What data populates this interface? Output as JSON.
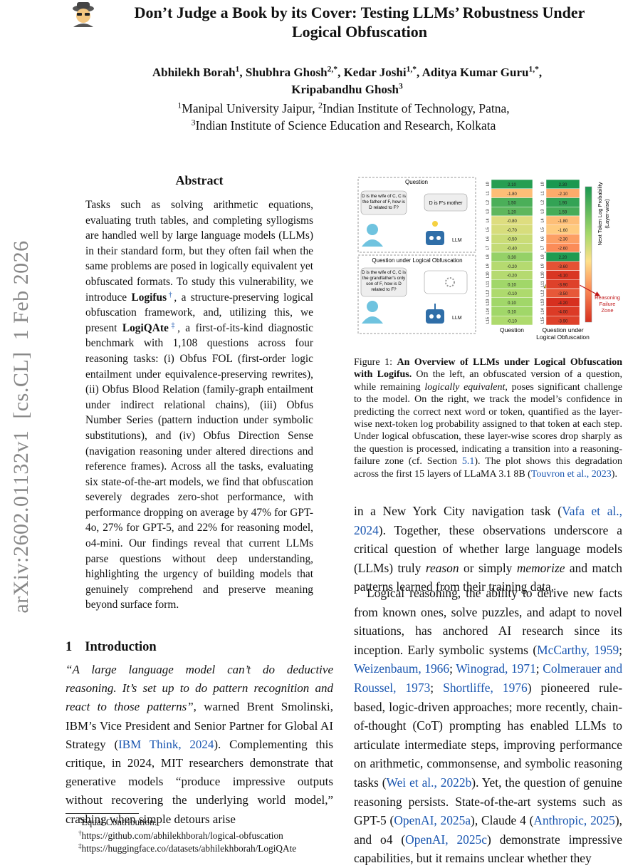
{
  "sidebar": "arXiv:2602.01132v1  [cs.CL]  1 Feb 2026",
  "header": {
    "title_lines": [
      "Don’t Judge a Book by its Cover: Testing LLMs’ Robustness Under",
      "Logical Obfuscation"
    ],
    "author_lines": [
      [
        {
          "text": "Abhilekh Borah"
        },
        {
          "text": "1",
          "style": "sup"
        },
        ", ",
        {
          "text": "Shubhra Ghosh"
        },
        {
          "text": "2,*",
          "style": "sup"
        },
        ", ",
        {
          "text": "Kedar Joshi"
        },
        {
          "text": "1,*",
          "style": "sup"
        },
        ", ",
        {
          "text": "Aditya Kumar Guru"
        },
        {
          "text": "1,*",
          "style": "sup"
        },
        ","
      ],
      [
        {
          "text": "Kripabandhu Ghosh"
        },
        {
          "text": "3",
          "style": "sup"
        }
      ]
    ],
    "affiliation_lines": [
      [
        {
          "text": "1",
          "style": "sup"
        },
        "Manipal University Jaipur, ",
        {
          "text": "2",
          "style": "sup"
        },
        "Indian Institute of Technology, Patna,"
      ],
      [
        {
          "text": "3",
          "style": "sup"
        },
        "Indian Institute of Science Education and Research, Kolkata"
      ]
    ]
  },
  "abstract": {
    "heading": "Abstract",
    "body": [
      "Tasks such as solving arithmetic equations, evaluating truth tables, and completing syllogisms are handled well by large language models (LLMs) in their standard form, but they often fail when the same problems are posed in logically equivalent yet obfuscated formats. To study this vulnerability, we introduce ",
      {
        "text": "Logifus",
        "style": "b"
      },
      {
        "text": "†",
        "style": "linksup"
      },
      ", a structure-preserving logical obfuscation framework, and, utilizing this, we present ",
      {
        "text": "LogiQAte",
        "style": "b"
      },
      {
        "text": "‡",
        "style": "linksup"
      },
      ", a first-of-its-kind diagnostic benchmark with 1,108 questions across four reasoning tasks: (i) Obfus FOL (first-order logic entailment under equivalence-preserving rewrites), (ii) Obfus Blood Relation (family-graph entailment under indirect relational chains), (iii) Obfus Number Series (pattern induction under symbolic substitutions), and (iv) Obfus Direction Sense (navigation reasoning under altered directions and reference frames). Across all the tasks, evaluating six state-of-the-art models, we find that obfuscation severely degrades zero-shot performance, with performance dropping on average by 47% for GPT-4o, 27% for GPT-5, and 22% for reasoning model, o4-mini. Our findings reveal that current LLMs parse questions without deep understanding, highlighting the urgency of building models that genuinely comprehend and preserve meaning beyond surface form."
    ]
  },
  "section": {
    "number": "1",
    "title": "Introduction"
  },
  "intro_left": [
    {
      "text": "“A large language model can’t do deductive reasoning. It’s set up to do pattern recognition and react to those patterns”",
      "style": "i"
    },
    ", warned Brent Smolinski, IBM’s Vice President and Senior Partner for Global AI Strategy (",
    {
      "text": "IBM Think, 2024",
      "style": "link"
    },
    "). Complementing this critique, in 2024, MIT researchers demonstrate that generative models “produce impressive outputs without recovering the underlying world model,” crashing when simple detours arise"
  ],
  "footnotes": [
    [
      {
        "text": "*",
        "style": "sup"
      },
      "Equal Contribution."
    ],
    [
      {
        "text": "†",
        "style": "sup"
      },
      "https://github.com/abhilekhborah/logical-obfuscation"
    ],
    [
      {
        "text": "‡",
        "style": "sup"
      },
      "https://huggingface.co/datasets/abhilekhborah/LogiQAte"
    ]
  ],
  "figure": {
    "panel_titles": [
      "Question",
      "Question under Logical Obfuscation"
    ],
    "question_lines": [
      "D is the wife of C, C is",
      "the father of F, how is",
      "D related to F?"
    ],
    "answer": "D is F's mother",
    "obfuscated_lines": [
      "D is the wife of C, C is",
      "the grandfather's only",
      "son of F, how is D",
      "related to F?"
    ],
    "model_label": "LLM",
    "row_labels": [
      "L0",
      "L1",
      "L2",
      "L3",
      "L4",
      "L5",
      "L6",
      "L7",
      "L8",
      "L9",
      "L10",
      "L11",
      "L12",
      "L13",
      "L14",
      "L15"
    ],
    "columns": [
      {
        "label_lines": [
          "Question"
        ],
        "values": [
          2.1,
          -1.8,
          1.5,
          1.2,
          -0.8,
          -0.7,
          -0.5,
          -0.4,
          0.3,
          -0.2,
          -0.2,
          0.1,
          -0.1,
          0.1,
          0.1,
          -0.1
        ],
        "value_labels": [
          "2.10",
          "-1.80",
          "1.50",
          "1.20",
          "-0.80",
          "-0.70",
          "-0.50",
          "-0.40",
          "0.30",
          "-0.20",
          "-0.20",
          "0.10",
          "-0.10",
          "0.10",
          "0.10",
          "-0.10"
        ]
      },
      {
        "label_lines": [
          "Question under",
          "Logical Obfuscation"
        ],
        "values": [
          2.3,
          -2.1,
          1.9,
          1.59,
          -1.8,
          -1.6,
          -2.3,
          -2.6,
          2.2,
          -3.6,
          -4.1,
          -3.9,
          -3.5,
          -4.2,
          -4.0,
          -3.9
        ],
        "value_labels": [
          "2.30",
          "-2.10",
          "1.90",
          "1.59",
          "-1.80",
          "-1.60",
          "-2.30",
          "-2.60",
          "2.20",
          "-3.60",
          "-4.10",
          "-3.90",
          "-3.50",
          "-4.20",
          "-4.00",
          "-3.90"
        ]
      }
    ],
    "colorbar_label_lines": [
      "Next Token Log Probability",
      "(Layer-wise)"
    ],
    "zone_label_lines": [
      "Reasoning",
      "Failure",
      "Zone"
    ],
    "caption": [
      "Figure 1:  ",
      {
        "text": "An Overview of LLMs under Logical Obfuscation with Logifus.",
        "style": "b"
      },
      " On the left, an obfuscated version of a question, while remaining ",
      {
        "text": "logically equivalent",
        "style": "i"
      },
      ", poses significant challenge to the model. On the right, we track the model’s confidence in predicting the correct next word or token, quantified as the layer-wise next-token log probability assigned to that token at each step. Under logical obfuscation, these layer-wise scores drop sharply as the question is processed, indicating a transition into a reasoning-failure zone (cf. Section ",
      {
        "text": "5.1",
        "style": "link"
      },
      "). The plot shows this degradation across the first 15 layers of LLaMA 3.1 8B (",
      {
        "text": "Touvron et al., 2023",
        "style": "link"
      },
      ")."
    ]
  },
  "intro_right": [
    [
      "in a New York City navigation task (",
      {
        "text": "Vafa et al., 2024",
        "style": "link"
      },
      "). Together, these observations underscore a critical question of whether large language models (LLMs) truly ",
      {
        "text": "reason",
        "style": "i"
      },
      " or simply ",
      {
        "text": "memorize",
        "style": "i"
      },
      " and match patterns learned from their training data."
    ],
    [
      "Logical reasoning, the ability to derive new facts from known ones, solve puzzles, and adapt to novel situations, has anchored AI research since its inception. Early symbolic systems (",
      {
        "text": "McCarthy, 1959",
        "style": "link"
      },
      "; ",
      {
        "text": "Weizenbaum, 1966",
        "style": "link"
      },
      "; ",
      {
        "text": "Winograd, 1971",
        "style": "link"
      },
      "; ",
      {
        "text": "Colmerauer and Roussel, 1973",
        "style": "link"
      },
      "; ",
      {
        "text": "Shortliffe, 1976",
        "style": "link"
      },
      ") pioneered rule-based, logic-driven approaches; more recently, chain-of-thought (CoT) prompting has enabled LLMs to articulate intermediate steps, improving performance on arithmetic, commonsense, and symbolic reasoning tasks (",
      {
        "text": "Wei et al., 2022b",
        "style": "link"
      },
      "). Yet, the question of genuine reasoning persists. State-of-the-art systems such as GPT-5 (",
      {
        "text": "OpenAI, 2025a",
        "style": "link"
      },
      "), Claude 4 (",
      {
        "text": "Anthropic, 2025",
        "style": "link"
      },
      "), and o4 (",
      {
        "text": "OpenAI, 2025c",
        "style": "link"
      },
      ") demonstrate impressive capabilities, but it remains unclear whether they"
    ]
  ]
}
